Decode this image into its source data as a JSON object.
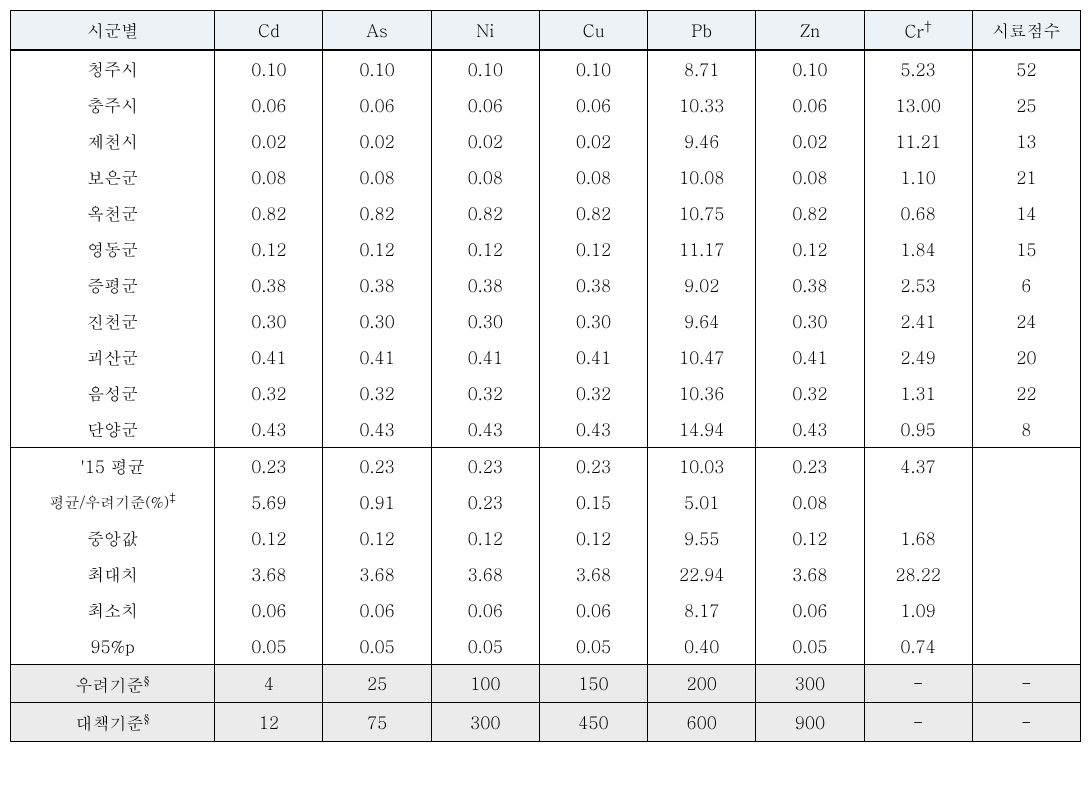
{
  "columns": {
    "widths": [
      185,
      98,
      98,
      98,
      98,
      98,
      98,
      98,
      98
    ],
    "headers": [
      "시군별",
      "Cd",
      "As",
      "Ni",
      "Cu",
      "Pb",
      "Zn",
      "Cr",
      "시료점수"
    ],
    "cr_dagger": "†"
  },
  "region_rows": [
    {
      "label": "청주시",
      "vals": [
        "0.10",
        "0.10",
        "0.10",
        "0.10",
        "8.71",
        "0.10",
        "5.23",
        "52"
      ]
    },
    {
      "label": "충주시",
      "vals": [
        "0.06",
        "0.06",
        "0.06",
        "0.06",
        "10.33",
        "0.06",
        "13.00",
        "25"
      ]
    },
    {
      "label": "제천시",
      "vals": [
        "0.02",
        "0.02",
        "0.02",
        "0.02",
        "9.46",
        "0.02",
        "11.21",
        "13"
      ]
    },
    {
      "label": "보은군",
      "vals": [
        "0.08",
        "0.08",
        "0.08",
        "0.08",
        "10.08",
        "0.08",
        "1.10",
        "21"
      ]
    },
    {
      "label": "옥천군",
      "vals": [
        "0.82",
        "0.82",
        "0.82",
        "0.82",
        "10.75",
        "0.82",
        "0.68",
        "14"
      ]
    },
    {
      "label": "영동군",
      "vals": [
        "0.12",
        "0.12",
        "0.12",
        "0.12",
        "11.17",
        "0.12",
        "1.84",
        "15"
      ]
    },
    {
      "label": "증평군",
      "vals": [
        "0.38",
        "0.38",
        "0.38",
        "0.38",
        "9.02",
        "0.38",
        "2.53",
        "6"
      ]
    },
    {
      "label": "진천군",
      "vals": [
        "0.30",
        "0.30",
        "0.30",
        "0.30",
        "9.64",
        "0.30",
        "2.41",
        "24"
      ]
    },
    {
      "label": "괴산군",
      "vals": [
        "0.41",
        "0.41",
        "0.41",
        "0.41",
        "10.47",
        "0.41",
        "2.49",
        "20"
      ]
    },
    {
      "label": "음성군",
      "vals": [
        "0.32",
        "0.32",
        "0.32",
        "0.32",
        "10.36",
        "0.32",
        "1.31",
        "22"
      ]
    },
    {
      "label": "단양군",
      "vals": [
        "0.43",
        "0.43",
        "0.43",
        "0.43",
        "14.94",
        "0.43",
        "0.95",
        "8"
      ]
    }
  ],
  "stats_rows": [
    {
      "label": "'15 평균",
      "vals": [
        "0.23",
        "0.23",
        "0.23",
        "0.23",
        "10.03",
        "0.23",
        "4.37",
        ""
      ],
      "small_first": false
    },
    {
      "label": "평균/우려기준(%)",
      "vals": [
        "5.69",
        "0.91",
        "0.23",
        "0.15",
        "5.01",
        "0.08",
        "",
        ""
      ],
      "small_first": true,
      "sup": "‡"
    },
    {
      "label": "중앙값",
      "vals": [
        "0.12",
        "0.12",
        "0.12",
        "0.12",
        "9.55",
        "0.12",
        "1.68",
        ""
      ],
      "small_first": false
    },
    {
      "label": "최대치",
      "vals": [
        "3.68",
        "3.68",
        "3.68",
        "3.68",
        "22.94",
        "3.68",
        "28.22",
        ""
      ],
      "small_first": false
    },
    {
      "label": "최소치",
      "vals": [
        "0.06",
        "0.06",
        "0.06",
        "0.06",
        "8.17",
        "0.06",
        "1.09",
        ""
      ],
      "small_first": false
    },
    {
      "label": "95%p",
      "vals": [
        "0.05",
        "0.05",
        "0.05",
        "0.05",
        "0.40",
        "0.05",
        "0.74",
        ""
      ],
      "small_first": false
    }
  ],
  "criteria_rows": [
    {
      "label": "우려기준",
      "sup": "§",
      "vals": [
        "4",
        "25",
        "100",
        "150",
        "200",
        "300",
        "-",
        "-"
      ]
    },
    {
      "label": "대책기준",
      "sup": "§",
      "vals": [
        "12",
        "75",
        "300",
        "450",
        "600",
        "900",
        "-",
        "-"
      ]
    }
  ],
  "styling": {
    "header_bg": "#edf2f7",
    "criteria_bg": "#ebebeb",
    "border_color": "#000000",
    "font_size_pt": 17,
    "small_label_font_size_pt": 15
  }
}
